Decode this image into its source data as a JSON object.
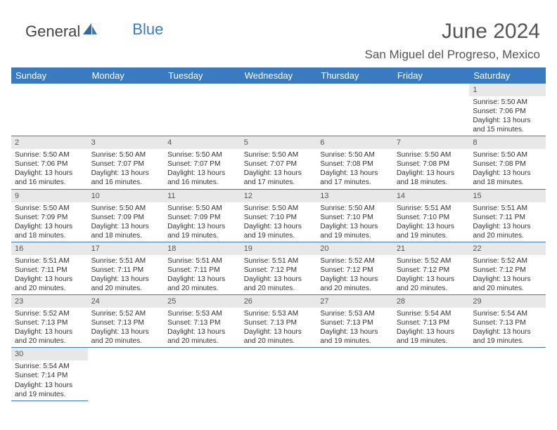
{
  "logo": {
    "part1": "General",
    "part2": "Blue"
  },
  "title": "June 2024",
  "location": "San Miguel del Progreso, Mexico",
  "colors": {
    "header_bg": "#3a7bbf",
    "header_text": "#ffffff",
    "daynum_bg": "#e8e8e8",
    "cell_border": "#3a7bbf",
    "logo_blue": "#3a7bbf",
    "body_text": "#333333",
    "title_text": "#555555",
    "background": "#ffffff"
  },
  "fonts": {
    "family": "Arial, Helvetica, sans-serif",
    "title_size_pt": 22,
    "location_size_pt": 13,
    "header_size_pt": 10,
    "cell_size_pt": 7.5,
    "daynum_size_pt": 8
  },
  "weekdays": [
    "Sunday",
    "Monday",
    "Tuesday",
    "Wednesday",
    "Thursday",
    "Friday",
    "Saturday"
  ],
  "weeks": [
    [
      null,
      null,
      null,
      null,
      null,
      null,
      {
        "n": "1",
        "sunrise": "Sunrise: 5:50 AM",
        "sunset": "Sunset: 7:06 PM",
        "daylight1": "Daylight: 13 hours",
        "daylight2": "and 15 minutes."
      }
    ],
    [
      {
        "n": "2",
        "sunrise": "Sunrise: 5:50 AM",
        "sunset": "Sunset: 7:06 PM",
        "daylight1": "Daylight: 13 hours",
        "daylight2": "and 16 minutes."
      },
      {
        "n": "3",
        "sunrise": "Sunrise: 5:50 AM",
        "sunset": "Sunset: 7:07 PM",
        "daylight1": "Daylight: 13 hours",
        "daylight2": "and 16 minutes."
      },
      {
        "n": "4",
        "sunrise": "Sunrise: 5:50 AM",
        "sunset": "Sunset: 7:07 PM",
        "daylight1": "Daylight: 13 hours",
        "daylight2": "and 16 minutes."
      },
      {
        "n": "5",
        "sunrise": "Sunrise: 5:50 AM",
        "sunset": "Sunset: 7:07 PM",
        "daylight1": "Daylight: 13 hours",
        "daylight2": "and 17 minutes."
      },
      {
        "n": "6",
        "sunrise": "Sunrise: 5:50 AM",
        "sunset": "Sunset: 7:08 PM",
        "daylight1": "Daylight: 13 hours",
        "daylight2": "and 17 minutes."
      },
      {
        "n": "7",
        "sunrise": "Sunrise: 5:50 AM",
        "sunset": "Sunset: 7:08 PM",
        "daylight1": "Daylight: 13 hours",
        "daylight2": "and 18 minutes."
      },
      {
        "n": "8",
        "sunrise": "Sunrise: 5:50 AM",
        "sunset": "Sunset: 7:08 PM",
        "daylight1": "Daylight: 13 hours",
        "daylight2": "and 18 minutes."
      }
    ],
    [
      {
        "n": "9",
        "sunrise": "Sunrise: 5:50 AM",
        "sunset": "Sunset: 7:09 PM",
        "daylight1": "Daylight: 13 hours",
        "daylight2": "and 18 minutes."
      },
      {
        "n": "10",
        "sunrise": "Sunrise: 5:50 AM",
        "sunset": "Sunset: 7:09 PM",
        "daylight1": "Daylight: 13 hours",
        "daylight2": "and 18 minutes."
      },
      {
        "n": "11",
        "sunrise": "Sunrise: 5:50 AM",
        "sunset": "Sunset: 7:09 PM",
        "daylight1": "Daylight: 13 hours",
        "daylight2": "and 19 minutes."
      },
      {
        "n": "12",
        "sunrise": "Sunrise: 5:50 AM",
        "sunset": "Sunset: 7:10 PM",
        "daylight1": "Daylight: 13 hours",
        "daylight2": "and 19 minutes."
      },
      {
        "n": "13",
        "sunrise": "Sunrise: 5:50 AM",
        "sunset": "Sunset: 7:10 PM",
        "daylight1": "Daylight: 13 hours",
        "daylight2": "and 19 minutes."
      },
      {
        "n": "14",
        "sunrise": "Sunrise: 5:51 AM",
        "sunset": "Sunset: 7:10 PM",
        "daylight1": "Daylight: 13 hours",
        "daylight2": "and 19 minutes."
      },
      {
        "n": "15",
        "sunrise": "Sunrise: 5:51 AM",
        "sunset": "Sunset: 7:11 PM",
        "daylight1": "Daylight: 13 hours",
        "daylight2": "and 20 minutes."
      }
    ],
    [
      {
        "n": "16",
        "sunrise": "Sunrise: 5:51 AM",
        "sunset": "Sunset: 7:11 PM",
        "daylight1": "Daylight: 13 hours",
        "daylight2": "and 20 minutes."
      },
      {
        "n": "17",
        "sunrise": "Sunrise: 5:51 AM",
        "sunset": "Sunset: 7:11 PM",
        "daylight1": "Daylight: 13 hours",
        "daylight2": "and 20 minutes."
      },
      {
        "n": "18",
        "sunrise": "Sunrise: 5:51 AM",
        "sunset": "Sunset: 7:11 PM",
        "daylight1": "Daylight: 13 hours",
        "daylight2": "and 20 minutes."
      },
      {
        "n": "19",
        "sunrise": "Sunrise: 5:51 AM",
        "sunset": "Sunset: 7:12 PM",
        "daylight1": "Daylight: 13 hours",
        "daylight2": "and 20 minutes."
      },
      {
        "n": "20",
        "sunrise": "Sunrise: 5:52 AM",
        "sunset": "Sunset: 7:12 PM",
        "daylight1": "Daylight: 13 hours",
        "daylight2": "and 20 minutes."
      },
      {
        "n": "21",
        "sunrise": "Sunrise: 5:52 AM",
        "sunset": "Sunset: 7:12 PM",
        "daylight1": "Daylight: 13 hours",
        "daylight2": "and 20 minutes."
      },
      {
        "n": "22",
        "sunrise": "Sunrise: 5:52 AM",
        "sunset": "Sunset: 7:12 PM",
        "daylight1": "Daylight: 13 hours",
        "daylight2": "and 20 minutes."
      }
    ],
    [
      {
        "n": "23",
        "sunrise": "Sunrise: 5:52 AM",
        "sunset": "Sunset: 7:13 PM",
        "daylight1": "Daylight: 13 hours",
        "daylight2": "and 20 minutes."
      },
      {
        "n": "24",
        "sunrise": "Sunrise: 5:52 AM",
        "sunset": "Sunset: 7:13 PM",
        "daylight1": "Daylight: 13 hours",
        "daylight2": "and 20 minutes."
      },
      {
        "n": "25",
        "sunrise": "Sunrise: 5:53 AM",
        "sunset": "Sunset: 7:13 PM",
        "daylight1": "Daylight: 13 hours",
        "daylight2": "and 20 minutes."
      },
      {
        "n": "26",
        "sunrise": "Sunrise: 5:53 AM",
        "sunset": "Sunset: 7:13 PM",
        "daylight1": "Daylight: 13 hours",
        "daylight2": "and 20 minutes."
      },
      {
        "n": "27",
        "sunrise": "Sunrise: 5:53 AM",
        "sunset": "Sunset: 7:13 PM",
        "daylight1": "Daylight: 13 hours",
        "daylight2": "and 19 minutes."
      },
      {
        "n": "28",
        "sunrise": "Sunrise: 5:54 AM",
        "sunset": "Sunset: 7:13 PM",
        "daylight1": "Daylight: 13 hours",
        "daylight2": "and 19 minutes."
      },
      {
        "n": "29",
        "sunrise": "Sunrise: 5:54 AM",
        "sunset": "Sunset: 7:13 PM",
        "daylight1": "Daylight: 13 hours",
        "daylight2": "and 19 minutes."
      }
    ],
    [
      {
        "n": "30",
        "sunrise": "Sunrise: 5:54 AM",
        "sunset": "Sunset: 7:14 PM",
        "daylight1": "Daylight: 13 hours",
        "daylight2": "and 19 minutes."
      },
      null,
      null,
      null,
      null,
      null,
      null
    ]
  ]
}
